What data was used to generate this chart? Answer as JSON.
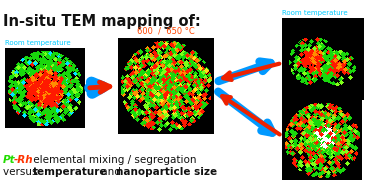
{
  "title": "In-situ TEM mapping of:",
  "label_room_left": "Room temperature",
  "label_hot": "600  /  650 °C",
  "label_room_right": "Room temperature",
  "pt_color": "#22dd00",
  "rh_color": "#ff3300",
  "cyan_color": "#00ccff",
  "hot_label_color": "#ff4400",
  "title_color": "#111111",
  "arrow_blue": "#0099ff",
  "arrow_red": "#ee2200",
  "bg": "#ffffff",
  "fig_w": 3.78,
  "fig_h": 1.84,
  "dpi": 100
}
